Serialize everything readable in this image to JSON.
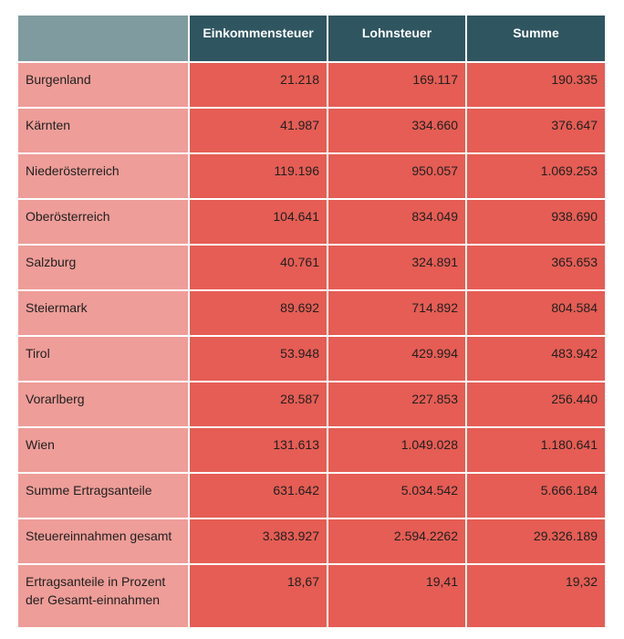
{
  "table": {
    "headers": [
      "",
      "Einkommensteuer",
      "Lohnsteuer",
      "Summe"
    ],
    "rows": [
      {
        "label": "Burgenland",
        "values": [
          "21.218",
          "169.117",
          "190.335"
        ],
        "height": 48
      },
      {
        "label": "Kärnten",
        "values": [
          "41.987",
          "334.660",
          "376.647"
        ],
        "height": 48
      },
      {
        "label": "Niederösterreich",
        "values": [
          "119.196",
          "950.057",
          "1.069.253"
        ],
        "height": 48
      },
      {
        "label": "Oberösterreich",
        "values": [
          "104.641",
          "834.049",
          "938.690"
        ],
        "height": 48
      },
      {
        "label": "Salzburg",
        "values": [
          "40.761",
          "324.891",
          "365.653"
        ],
        "height": 48
      },
      {
        "label": "Steiermark",
        "values": [
          "89.692",
          "714.892",
          "804.584"
        ],
        "height": 48
      },
      {
        "label": "Tirol",
        "values": [
          "53.948",
          "429.994",
          "483.942"
        ],
        "height": 48
      },
      {
        "label": "Vorarlberg",
        "values": [
          "28.587",
          "227.853",
          "256.440"
        ],
        "height": 48
      },
      {
        "label": "Wien",
        "values": [
          "131.613",
          "1.049.028",
          "1.180.641"
        ],
        "height": 48
      },
      {
        "label": "Summe Ertragsanteile",
        "values": [
          "631.642",
          "5.034.542",
          "5.666.184"
        ],
        "height": 48
      },
      {
        "label": "Steuereinnahmen gesamt",
        "values": [
          "3.383.927",
          "2.594.2262",
          "29.326.189"
        ],
        "height": 48
      },
      {
        "label": "Ertragsanteile in Prozent der Gesamt-einnahmen",
        "values": [
          "18,67",
          "19,41",
          "19,32"
        ],
        "height": 68
      }
    ]
  }
}
